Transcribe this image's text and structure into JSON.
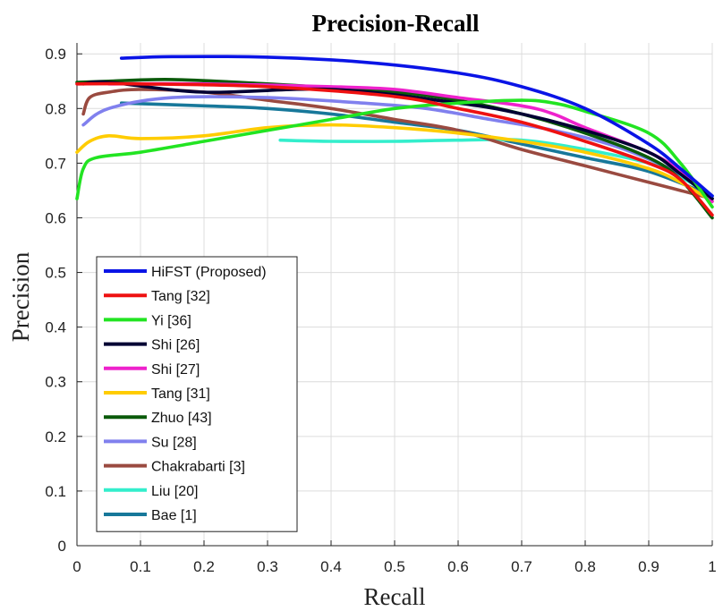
{
  "chart_data": {
    "type": "line",
    "title": "Precision-Recall",
    "xlabel": "Recall",
    "ylabel": "Precision",
    "xlim": [
      0,
      1
    ],
    "ylim": [
      0,
      0.92
    ],
    "xticks": [
      0,
      0.1,
      0.2,
      0.3,
      0.4,
      0.5,
      0.6,
      0.7,
      0.8,
      0.9,
      1
    ],
    "xtick_labels": [
      "0",
      "0.1",
      "0.2",
      "0.3",
      "0.4",
      "0.5",
      "0.6",
      "0.7",
      "0.8",
      "0.9",
      "1"
    ],
    "yticks": [
      0,
      0.1,
      0.2,
      0.3,
      0.4,
      0.5,
      0.6,
      0.7,
      0.8,
      0.9
    ],
    "ytick_labels": [
      "0",
      "0.1",
      "0.2",
      "0.3",
      "0.4",
      "0.5",
      "0.6",
      "0.7",
      "0.8",
      "0.9"
    ],
    "grid": true,
    "legend_position": "bottom-left",
    "series": [
      {
        "name": "HiFST (Proposed)",
        "color": "#0a14e6",
        "x": [
          0.07,
          0.15,
          0.3,
          0.45,
          0.6,
          0.7,
          0.8,
          0.9,
          0.95,
          1.0
        ],
        "y": [
          0.892,
          0.895,
          0.894,
          0.885,
          0.865,
          0.84,
          0.8,
          0.735,
          0.69,
          0.64
        ]
      },
      {
        "name": "Tang [32]",
        "color": "#ee1111",
        "x": [
          0.0,
          0.1,
          0.3,
          0.5,
          0.6,
          0.7,
          0.8,
          0.9,
          0.95,
          1.0
        ],
        "y": [
          0.845,
          0.845,
          0.84,
          0.822,
          0.8,
          0.775,
          0.74,
          0.7,
          0.67,
          0.605
        ]
      },
      {
        "name": "Yi [36]",
        "color": "#22e422",
        "x": [
          0.0,
          0.01,
          0.03,
          0.1,
          0.2,
          0.3,
          0.4,
          0.5,
          0.6,
          0.7,
          0.75,
          0.8,
          0.9,
          0.95,
          1.0
        ],
        "y": [
          0.635,
          0.69,
          0.71,
          0.72,
          0.74,
          0.76,
          0.78,
          0.8,
          0.81,
          0.815,
          0.81,
          0.795,
          0.755,
          0.7,
          0.62
        ]
      },
      {
        "name": "Shi [26]",
        "color": "#000033",
        "x": [
          0.01,
          0.05,
          0.2,
          0.4,
          0.6,
          0.7,
          0.8,
          0.9,
          0.95,
          1.0
        ],
        "y": [
          0.845,
          0.848,
          0.83,
          0.835,
          0.81,
          0.79,
          0.76,
          0.72,
          0.68,
          0.635
        ]
      },
      {
        "name": "Shi [27]",
        "color": "#ee22cc",
        "x": [
          0.05,
          0.2,
          0.4,
          0.5,
          0.6,
          0.7,
          0.75,
          0.8,
          0.9,
          0.95,
          1.0
        ],
        "y": [
          0.845,
          0.845,
          0.84,
          0.835,
          0.82,
          0.805,
          0.79,
          0.765,
          0.72,
          0.685,
          0.63
        ]
      },
      {
        "name": "Tang [31]",
        "color": "#ffcc00",
        "x": [
          0.0,
          0.02,
          0.05,
          0.1,
          0.2,
          0.3,
          0.4,
          0.5,
          0.6,
          0.7,
          0.8,
          0.9,
          0.95,
          1.0
        ],
        "y": [
          0.72,
          0.74,
          0.75,
          0.745,
          0.75,
          0.765,
          0.77,
          0.765,
          0.755,
          0.74,
          0.72,
          0.69,
          0.665,
          0.63
        ]
      },
      {
        "name": "Zhuo [43]",
        "color": "#0a5a0a",
        "x": [
          0.0,
          0.05,
          0.15,
          0.3,
          0.4,
          0.5,
          0.6,
          0.7,
          0.8,
          0.9,
          0.95,
          1.0
        ],
        "y": [
          0.848,
          0.85,
          0.853,
          0.845,
          0.838,
          0.83,
          0.815,
          0.79,
          0.755,
          0.71,
          0.67,
          0.6
        ]
      },
      {
        "name": "Su [28]",
        "color": "#8080ee",
        "x": [
          0.01,
          0.05,
          0.15,
          0.3,
          0.45,
          0.55,
          0.65,
          0.75,
          0.85,
          0.95,
          1.0
        ],
        "y": [
          0.77,
          0.8,
          0.82,
          0.82,
          0.81,
          0.8,
          0.78,
          0.76,
          0.73,
          0.68,
          0.635
        ]
      },
      {
        "name": "Chakrabarti [3]",
        "color": "#9a4a40",
        "x": [
          0.01,
          0.02,
          0.05,
          0.1,
          0.2,
          0.3,
          0.4,
          0.5,
          0.6,
          0.7,
          0.8,
          0.9,
          1.0
        ],
        "y": [
          0.79,
          0.82,
          0.83,
          0.835,
          0.83,
          0.815,
          0.8,
          0.78,
          0.76,
          0.725,
          0.695,
          0.665,
          0.635
        ]
      },
      {
        "name": "Liu [20]",
        "color": "#33eecc",
        "x": [
          0.32,
          0.4,
          0.5,
          0.6,
          0.7,
          0.8,
          0.9,
          0.95,
          1.0
        ],
        "y": [
          0.742,
          0.74,
          0.74,
          0.742,
          0.742,
          0.725,
          0.7,
          0.675,
          0.64
        ]
      },
      {
        "name": "Bae [1]",
        "color": "#17789a",
        "x": [
          0.07,
          0.2,
          0.3,
          0.4,
          0.5,
          0.6,
          0.7,
          0.8,
          0.9,
          1.0
        ],
        "y": [
          0.81,
          0.805,
          0.8,
          0.79,
          0.775,
          0.76,
          0.735,
          0.71,
          0.685,
          0.64
        ]
      }
    ]
  }
}
